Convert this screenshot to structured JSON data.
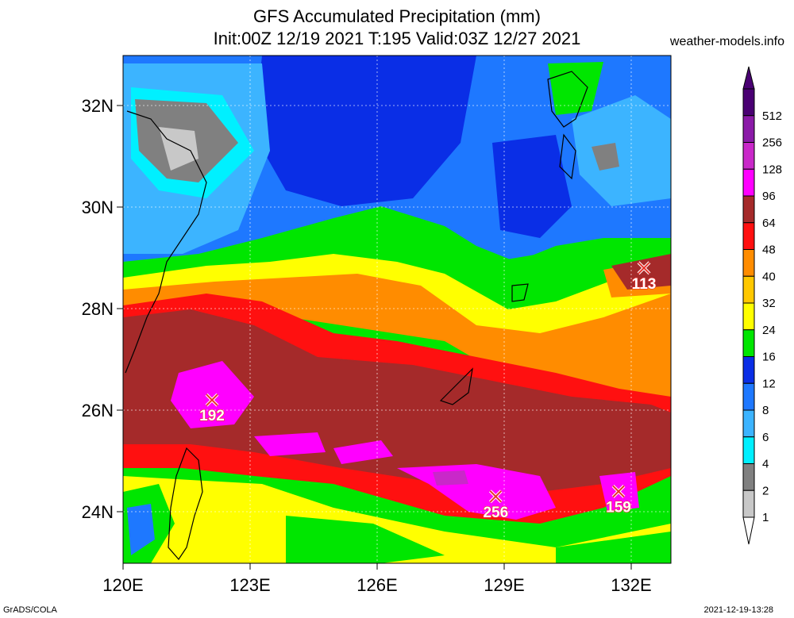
{
  "header": {
    "title_line1": "GFS Accumulated Precipitation (mm)",
    "title_line2": "Init:00Z 12/19 2021 T:195 Valid:03Z 12/27 2021",
    "site": "weather-models.info"
  },
  "footer": {
    "left": "GrADS/COLA",
    "right": "2021-12-19-13:28"
  },
  "axes": {
    "lon_labels": [
      "120E",
      "123E",
      "126E",
      "129E",
      "132E"
    ],
    "lat_labels": [
      "32N",
      "30N",
      "28N",
      "26N",
      "24N"
    ]
  },
  "legend": {
    "levels": [
      {
        "label": "512",
        "color": "#4a0073"
      },
      {
        "label": "256",
        "color": "#8b1aa8"
      },
      {
        "label": "128",
        "color": "#c928c9"
      },
      {
        "label": "96",
        "color": "#ff00ff"
      },
      {
        "label": "64",
        "color": "#a52a2a"
      },
      {
        "label": "48",
        "color": "#ff1010"
      },
      {
        "label": "40",
        "color": "#ff8c00"
      },
      {
        "label": "32",
        "color": "#ffc800"
      },
      {
        "label": "24",
        "color": "#ffff00"
      },
      {
        "label": "16",
        "color": "#00e600"
      },
      {
        "label": "12",
        "color": "#0a2ee6"
      },
      {
        "label": "8",
        "color": "#1e78ff"
      },
      {
        "label": "6",
        "color": "#3cb4ff"
      },
      {
        "label": "4",
        "color": "#00f0ff"
      },
      {
        "label": "2",
        "color": "#808080"
      },
      {
        "label": "1",
        "color": "#c8c8c8"
      }
    ],
    "below_min_color": "#ffffff"
  },
  "markers": [
    {
      "value": "192",
      "lon": 122.1,
      "lat": 26.2
    },
    {
      "value": "113",
      "lon": 132.3,
      "lat": 28.8
    },
    {
      "value": "256",
      "lon": 128.8,
      "lat": 24.3
    },
    {
      "value": "159",
      "lon": 131.7,
      "lat": 24.4
    }
  ]
}
